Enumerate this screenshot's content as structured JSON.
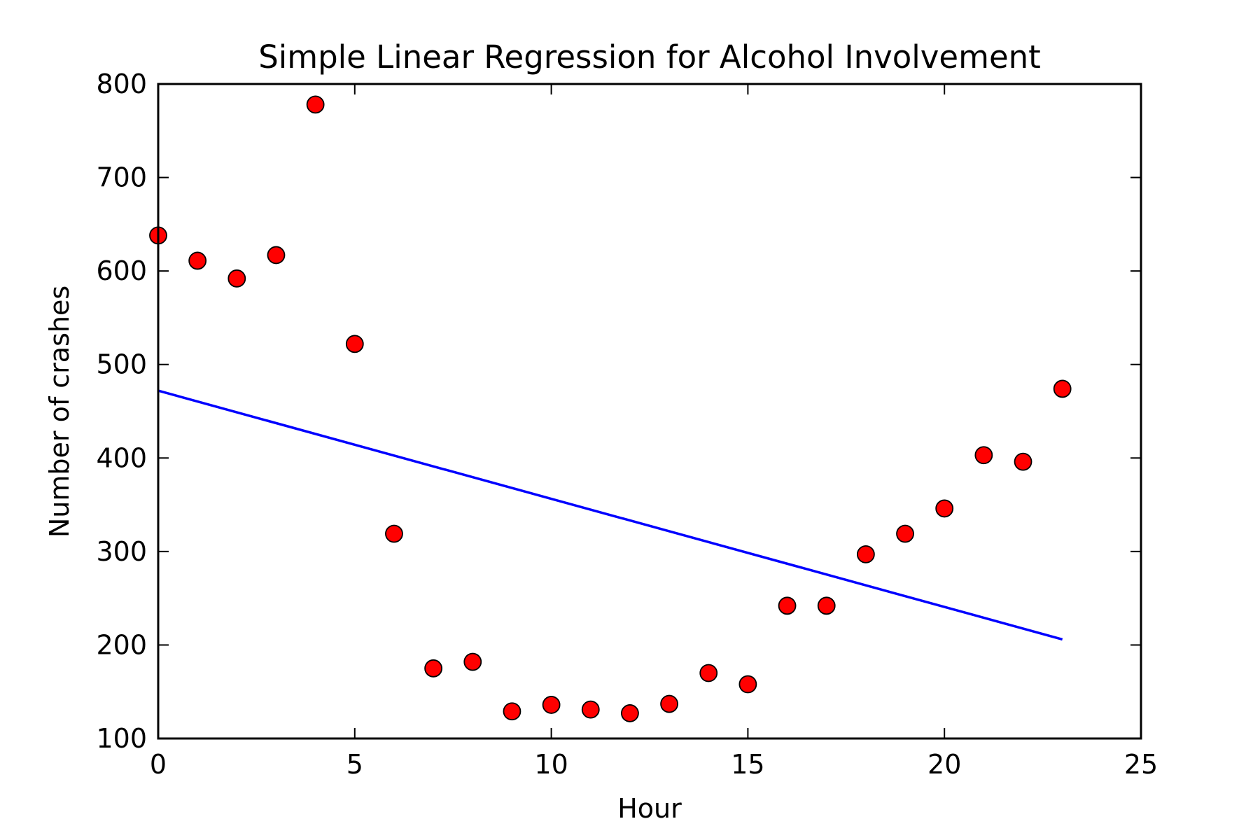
{
  "chart_data": {
    "type": "scatter",
    "title": "Simple Linear Regression for Alcohol Involvement",
    "xlabel": "Hour",
    "ylabel": "Number of crashes",
    "xlim": [
      0,
      25
    ],
    "ylim": [
      100,
      800
    ],
    "xticks": [
      0,
      5,
      10,
      15,
      20,
      25
    ],
    "yticks": [
      100,
      200,
      300,
      400,
      500,
      600,
      700,
      800
    ],
    "grid": false,
    "series": [
      {
        "kind": "scatter",
        "color": "#ff0000",
        "edge_color": "#000000",
        "x": [
          0,
          1,
          2,
          3,
          4,
          5,
          6,
          7,
          8,
          9,
          10,
          11,
          12,
          13,
          14,
          15,
          16,
          17,
          18,
          19,
          20,
          21,
          22,
          23
        ],
        "y": [
          638,
          611,
          592,
          617,
          778,
          522,
          319,
          175,
          182,
          129,
          136,
          131,
          127,
          137,
          170,
          158,
          242,
          242,
          297,
          319,
          346,
          403,
          396,
          474
        ]
      },
      {
        "kind": "line",
        "color": "#0000ff",
        "x": [
          0,
          23
        ],
        "y": [
          472,
          206
        ]
      }
    ]
  }
}
